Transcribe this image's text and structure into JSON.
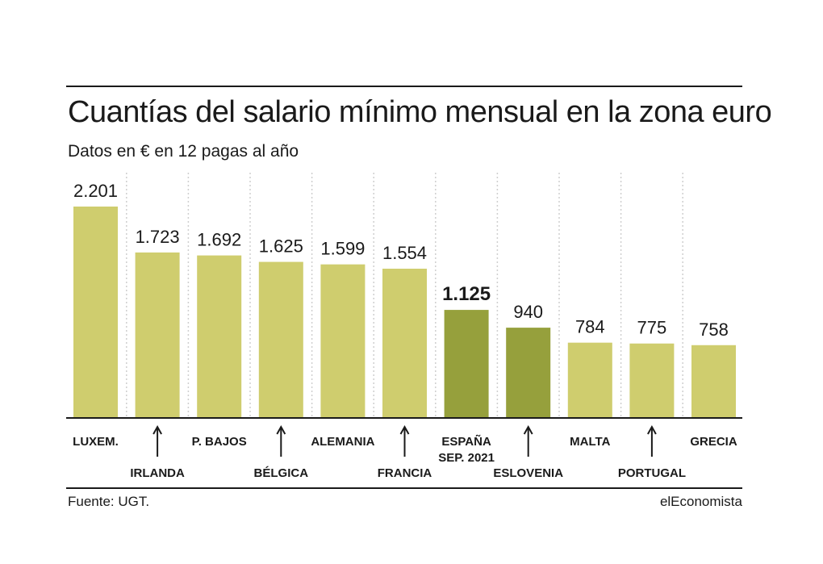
{
  "header": {
    "title": "Cuantías del salario mínimo mensual en la zona euro",
    "subtitle": "Datos en € en 12 pagas al año"
  },
  "footer": {
    "source": "Fuente: UGT.",
    "brand": "elEconomista"
  },
  "colors": {
    "bar": "#cfcd6e",
    "bar_highlight": "#96a03c",
    "divider": "#cfcfcf",
    "ink": "#1a1a1a"
  },
  "chart_data": {
    "type": "bar",
    "title": "Cuantías del salario mínimo mensual en la zona euro",
    "subtitle": "Datos en € en 12 pagas al año",
    "categories": [
      "LUXEM.",
      "IRLANDA",
      "P. BAJOS",
      "BÉLGICA",
      "ALEMANIA",
      "FRANCIA",
      "ESPAÑA SEP. 2021",
      "ESLOVENIA",
      "MALTA",
      "PORTUGAL",
      "GRECIA"
    ],
    "category_lines": [
      [
        "LUXEM."
      ],
      [
        "IRLANDA"
      ],
      [
        "P. BAJOS"
      ],
      [
        "BÉLGICA"
      ],
      [
        "ALEMANIA"
      ],
      [
        "FRANCIA"
      ],
      [
        "ESPAÑA",
        "SEP. 2021"
      ],
      [
        "ESLOVENIA"
      ],
      [
        "MALTA"
      ],
      [
        "PORTUGAL"
      ],
      [
        "GRECIA"
      ]
    ],
    "values": [
      2201,
      1723,
      1692,
      1625,
      1599,
      1554,
      1125,
      940,
      784,
      775,
      758
    ],
    "value_labels": [
      "2.201",
      "1.723",
      "1.692",
      "1.625",
      "1.599",
      "1.554",
      "1.125",
      "940",
      "784",
      "775",
      "758"
    ],
    "highlighted": [
      6,
      7
    ],
    "label_with_arrow": [
      1,
      3,
      5,
      7,
      9
    ],
    "ylim": [
      0,
      2201
    ],
    "grid": false,
    "legend": "none",
    "xlabel": "",
    "ylabel": ""
  }
}
